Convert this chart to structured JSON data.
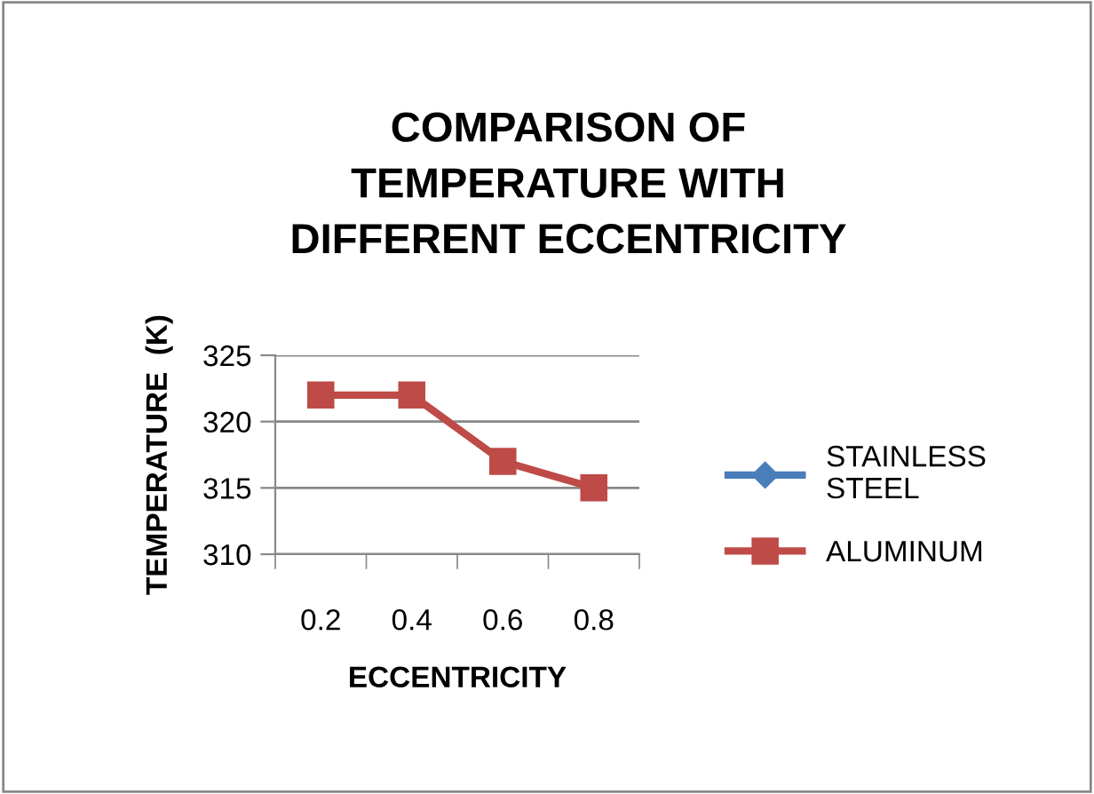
{
  "chart_data": {
    "type": "line",
    "title": "COMPARISON OF\nTEMPERATURE WITH\nDIFFERENT ECCENTRICITY",
    "xlabel": "ECCENTRICITY",
    "ylabel": "TEMPERATURE  (K)",
    "categories": [
      "0.2",
      "0.4",
      "0.6",
      "0.8"
    ],
    "series": [
      {
        "name": "STAINLESS\nSTEEL",
        "color": "#4a7ebb",
        "marker": "diamond",
        "values": [
          null,
          null,
          null,
          null
        ]
      },
      {
        "name": "ALUMINUM",
        "color": "#be4b48",
        "marker": "square",
        "values": [
          322,
          322,
          317,
          315
        ]
      }
    ],
    "ylim": [
      310,
      325
    ],
    "yticks": [
      310,
      315,
      320,
      325
    ],
    "grid": "y",
    "legend": "right"
  }
}
